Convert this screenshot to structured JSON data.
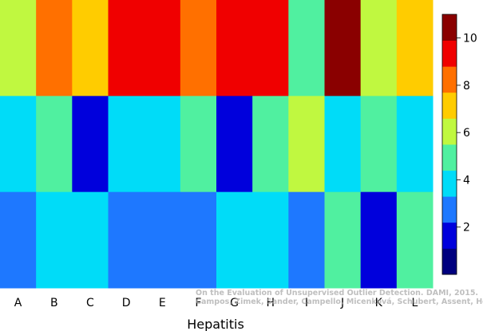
{
  "chart_data": {
    "type": "heatmap",
    "title": "",
    "xlabel": "Hepatitis",
    "ylabel": "",
    "columns": [
      "A",
      "B",
      "C",
      "D",
      "E",
      "F",
      "G",
      "H",
      "I",
      "J",
      "K",
      "L"
    ],
    "rows": [
      [
        5,
        7,
        6,
        8,
        8,
        7,
        8,
        8,
        4,
        9,
        5,
        6
      ],
      [
        3,
        4,
        1,
        3,
        3,
        4,
        1,
        4,
        5,
        3,
        4,
        3
      ],
      [
        2,
        3,
        3,
        2,
        2,
        2,
        3,
        3,
        2,
        4,
        1,
        4
      ]
    ],
    "colorbar": {
      "range": [
        0,
        11
      ],
      "ticks": [
        "2",
        "4",
        "6",
        "8",
        "10"
      ],
      "colors": [
        "#00007f",
        "#0000dc",
        "#1e78ff",
        "#00dcf8",
        "#50f0a0",
        "#c0f840",
        "#ffcc00",
        "#ff7000",
        "#f00000",
        "#8a0000"
      ]
    },
    "grid": false
  },
  "credit": {
    "line1": "On the Evaluation of Unsupervised Outlier Detection. DAMI, 2015.",
    "line2": "Campos, Zimek, Sander, Campello, Micenková, Schubert, Assent, Houle"
  }
}
